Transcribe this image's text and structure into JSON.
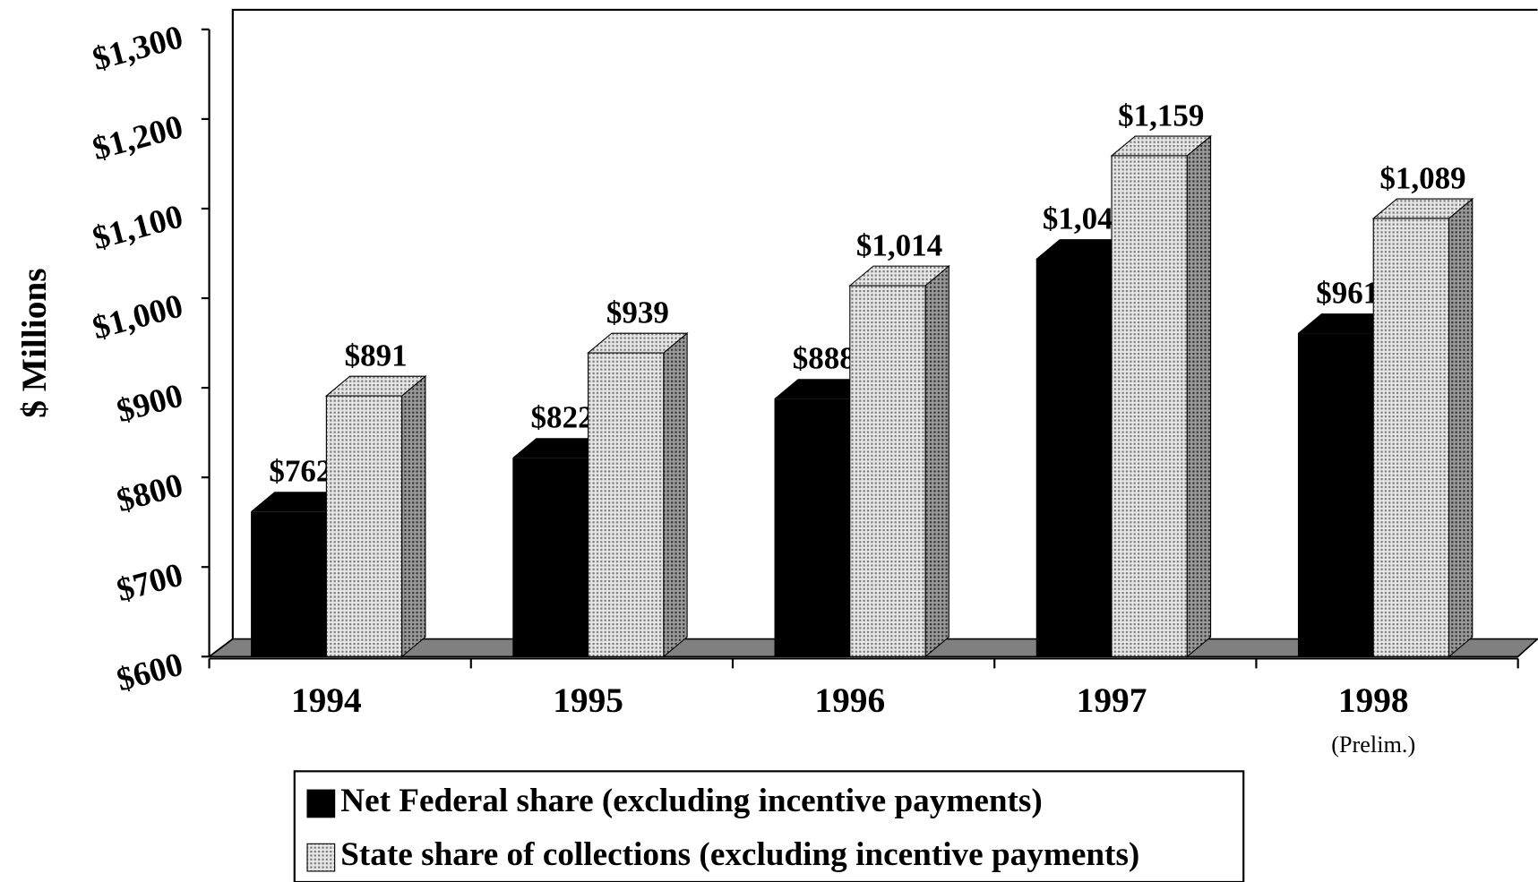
{
  "chart_data": {
    "type": "bar3d",
    "y_axis_label": "$ Millions",
    "categories": [
      "1994",
      "1995",
      "1996",
      "1997",
      "1998"
    ],
    "annotation": "(Prelim.)",
    "series": [
      {
        "name": "Net Federal share (excluding incentive payments)",
        "color": "#000000",
        "values": [
          762,
          822,
          888,
          1044,
          961
        ],
        "value_labels": [
          "$762",
          "$822",
          "$888",
          "$1,044",
          "$961"
        ]
      },
      {
        "name": "State share of collections (excluding incentive payments)",
        "color": "#c8c8c8",
        "values": [
          891,
          939,
          1014,
          1159,
          1089
        ],
        "value_labels": [
          "$891",
          "$939",
          "$1,014",
          "$1,159",
          "$1,089"
        ]
      }
    ],
    "ylim": [
      600,
      1300
    ],
    "yticks": [
      {
        "value": 600,
        "label": "$600"
      },
      {
        "value": 700,
        "label": "$700"
      },
      {
        "value": 800,
        "label": "$800"
      },
      {
        "value": 900,
        "label": "$900"
      },
      {
        "value": 1000,
        "label": "$1,000"
      },
      {
        "value": 1100,
        "label": "$1,100"
      },
      {
        "value": 1200,
        "label": "$1,200"
      },
      {
        "value": 1300,
        "label": "$1,300"
      }
    ]
  }
}
